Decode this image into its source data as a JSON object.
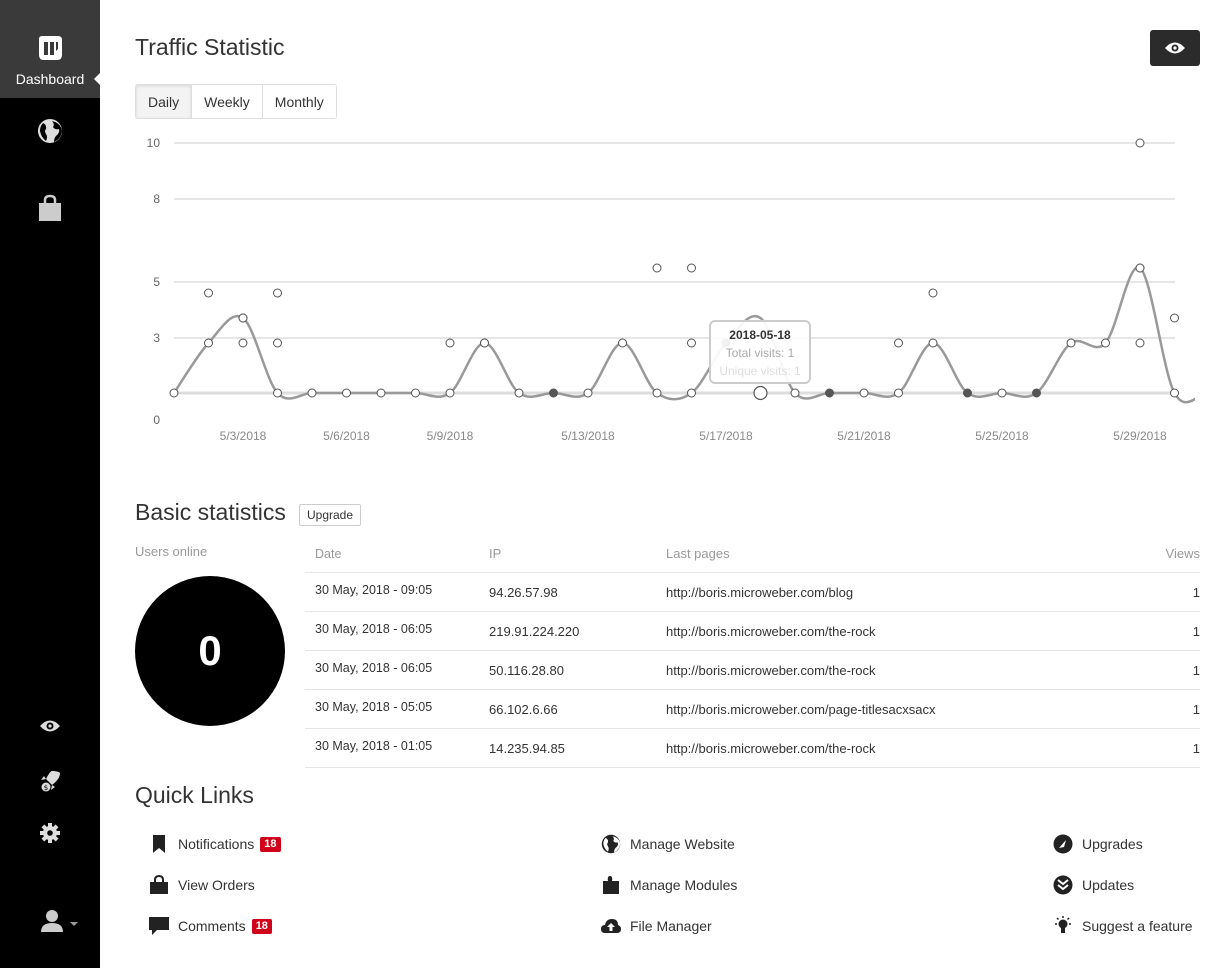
{
  "sidebar": {
    "dashboard_label": "Dashboard"
  },
  "header": {
    "title": "Traffic Statistic"
  },
  "tabs": [
    {
      "label": "Daily"
    },
    {
      "label": "Weekly"
    },
    {
      "label": "Monthly"
    }
  ],
  "tooltip": {
    "date": "2018-05-18",
    "total": "Total visits: 1",
    "unique": "Unique visits: 1"
  },
  "chart_data": {
    "type": "line",
    "ylim": [
      0,
      10
    ],
    "y_ticks": [
      "0",
      "3",
      "5",
      "8",
      "10"
    ],
    "x_tick_labels": [
      "5/3/2018",
      "5/6/2018",
      "5/9/2018",
      "5/13/2018",
      "5/17/2018",
      "5/21/2018",
      "5/25/2018",
      "5/29/2018"
    ],
    "x_start_date": "2018-05-01",
    "series": [
      {
        "name": "Total visits",
        "values": [
          1,
          2,
          3,
          1,
          1,
          1,
          1,
          1,
          1,
          2,
          1,
          1,
          1,
          2,
          1,
          1,
          2,
          3,
          1,
          1,
          1,
          1,
          2,
          1,
          1,
          1,
          2,
          2,
          5,
          1,
          1,
          1,
          1,
          1,
          1,
          1
        ]
      }
    ],
    "scatter_points": [
      {
        "day": 2,
        "y": 4
      },
      {
        "day": 3,
        "y": 3
      },
      {
        "day": 4,
        "y": 4
      },
      {
        "day": 4,
        "y": 2
      },
      {
        "day": 3,
        "y": 2
      },
      {
        "day": 9,
        "y": 2
      },
      {
        "day": 10,
        "y": 2
      },
      {
        "day": 15,
        "y": 5
      },
      {
        "day": 16,
        "y": 5
      },
      {
        "day": 16,
        "y": 2
      },
      {
        "day": 22,
        "y": 2
      },
      {
        "day": 23,
        "y": 4
      },
      {
        "day": 29,
        "y": 10
      },
      {
        "day": 29,
        "y": 5
      },
      {
        "day": 29,
        "y": 2
      },
      {
        "day": 30,
        "y": 3
      },
      {
        "day": 31,
        "y": 3
      },
      {
        "day": 31,
        "y": 2
      }
    ],
    "filled_points_days": [
      12,
      17,
      20,
      24,
      26
    ],
    "highlight_day": 18
  },
  "basic_stats": {
    "title": "Basic statistics",
    "upgrade_label": "Upgrade",
    "users_online_label": "Users online",
    "users_online_count": "0",
    "columns": {
      "date": "Date",
      "ip": "IP",
      "last_pages": "Last pages",
      "views": "Views"
    },
    "rows": [
      {
        "date": "30 May, 2018 - 09:05",
        "ip": "94.26.57.98",
        "page": "http://boris.microweber.com/blog",
        "views": "1"
      },
      {
        "date": "30 May, 2018 - 06:05",
        "ip": "219.91.224.220",
        "page": "http://boris.microweber.com/the-rock",
        "views": "1"
      },
      {
        "date": "30 May, 2018 - 06:05",
        "ip": "50.116.28.80",
        "page": "http://boris.microweber.com/the-rock",
        "views": "1"
      },
      {
        "date": "30 May, 2018 - 05:05",
        "ip": "66.102.6.66",
        "page": "http://boris.microweber.com/page-titlesacxsacx",
        "views": "1"
      },
      {
        "date": "30 May, 2018 - 01:05",
        "ip": "14.235.94.85",
        "page": "http://boris.microweber.com/the-rock",
        "views": "1"
      }
    ]
  },
  "quick_links": {
    "title": "Quick Links",
    "notifications": {
      "label": "Notifications",
      "badge": "18"
    },
    "view_orders": {
      "label": "View Orders"
    },
    "comments": {
      "label": "Comments",
      "badge": "18"
    },
    "manage_website": {
      "label": "Manage Website"
    },
    "manage_modules": {
      "label": "Manage Modules"
    },
    "file_manager": {
      "label": "File Manager"
    },
    "upgrades": {
      "label": "Upgrades"
    },
    "updates": {
      "label": "Updates"
    },
    "suggest_feature": {
      "label": "Suggest a feature"
    }
  },
  "colors": {
    "sidebar_bg": "#000000",
    "sidebar_active": "#3a3a3a",
    "badge": "#d0021b",
    "line": "#999999"
  }
}
